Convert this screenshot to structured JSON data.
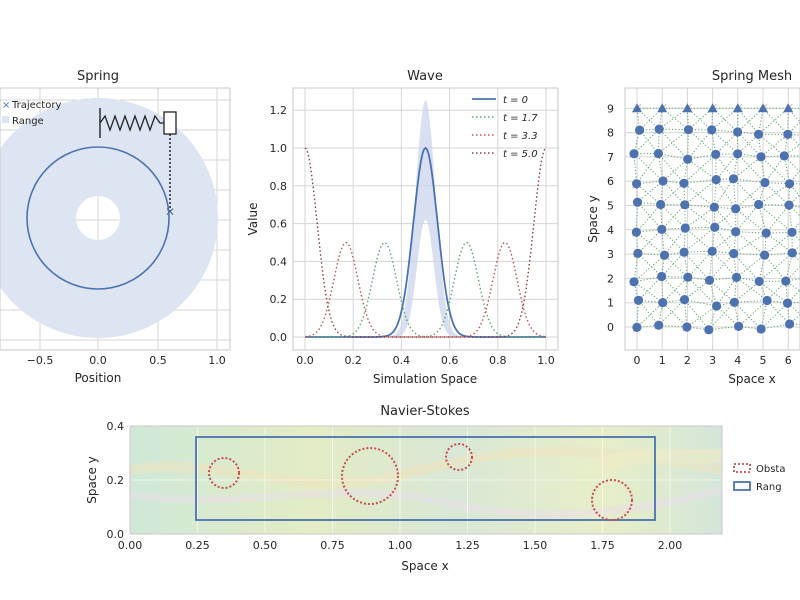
{
  "spring": {
    "title": "Spring",
    "xlabel": "Position",
    "xticks": [
      "−0.5",
      "0.0",
      "0.5",
      "1.0"
    ],
    "legend": [
      "Trajectory",
      "Range"
    ],
    "colors": {
      "trajectory": "#4c72b0",
      "range": "#dde4f2"
    }
  },
  "wave": {
    "chart_data": {
      "type": "line",
      "title": "Wave",
      "xlabel": "Simulation Space",
      "ylabel": "Value",
      "xlim": [
        0.0,
        1.0
      ],
      "ylim": [
        -0.05,
        1.3
      ],
      "xticks": [
        "0.0",
        "0.2",
        "0.4",
        "0.6",
        "0.8",
        "1.0"
      ],
      "yticks": [
        "0.0",
        "0.2",
        "0.4",
        "0.6",
        "0.8",
        "1.0",
        "1.2"
      ],
      "legend_position": "top-right",
      "series": [
        {
          "name": "t = 0",
          "style": "solid",
          "color": "#4c72b0",
          "peaks": [
            0.5
          ],
          "height": 1.0
        },
        {
          "name": "t = 1.7",
          "style": "dotted",
          "color": "#55a868",
          "peaks": [
            0.33,
            0.67
          ],
          "height": 0.5
        },
        {
          "name": "t = 3.3",
          "style": "dotted",
          "color": "#c44e52",
          "peaks": [
            0.17,
            0.83
          ],
          "height": 0.5
        },
        {
          "name": "t = 5.0",
          "style": "dotted",
          "color": "#8c3b3b",
          "peaks": [
            0.0,
            1.0
          ],
          "height": 1.0
        }
      ]
    }
  },
  "mesh": {
    "title": "Spring Mesh",
    "xlabel": "Space x",
    "ylabel": "Space y",
    "xticks": [
      "0",
      "1",
      "2",
      "3",
      "4",
      "5",
      "6"
    ],
    "yticks": [
      "0",
      "1",
      "2",
      "3",
      "4",
      "5",
      "6",
      "7",
      "8",
      "9"
    ],
    "colors": {
      "node": "#4c72b0",
      "spring": "#55a868"
    }
  },
  "navier": {
    "title": "Navier-Stokes",
    "xlabel": "Space x",
    "ylabel": "Space y",
    "xticks": [
      "0.00",
      "0.25",
      "0.50",
      "0.75",
      "1.00",
      "1.25",
      "1.50",
      "1.75",
      "2.00"
    ],
    "yticks": [
      "0.0",
      "0.2",
      "0.4"
    ],
    "legend": [
      "Obsta",
      "Rang"
    ],
    "colors": {
      "obstacle": "#c44e52",
      "range": "#4c72b0"
    }
  }
}
